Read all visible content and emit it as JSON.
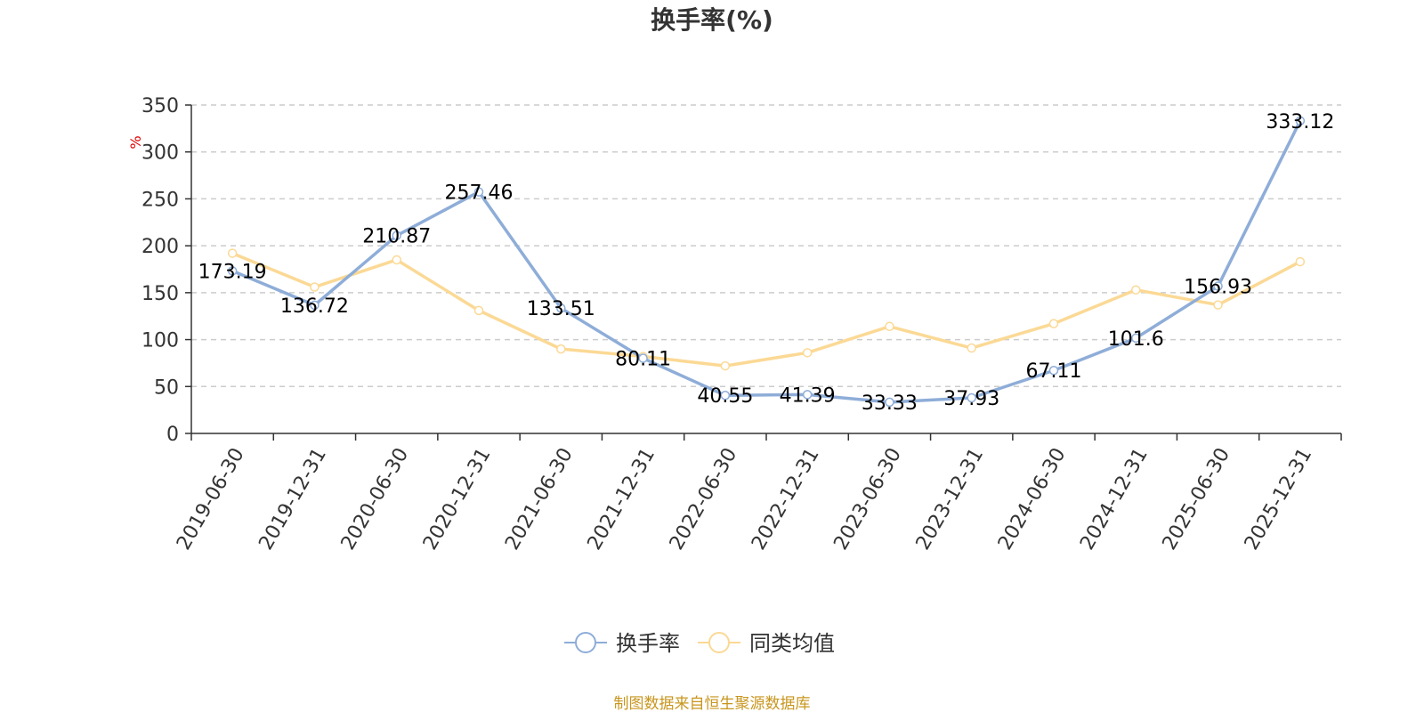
{
  "chart_data": {
    "type": "line",
    "title": "换手率(%)",
    "unit_label": "%",
    "source": "制图数据来自恒生聚源数据库",
    "categories": [
      "2019-06-30",
      "2019-12-31",
      "2020-06-30",
      "2020-12-31",
      "2021-06-30",
      "2021-12-31",
      "2022-06-30",
      "2022-12-31",
      "2023-06-30",
      "2023-12-31",
      "2024-06-30",
      "2024-12-31",
      "2025-06-30",
      "2025-12-31"
    ],
    "yticks": [
      "0",
      "50",
      "100",
      "150",
      "200",
      "250",
      "300",
      "350"
    ],
    "ylim": [
      0,
      350
    ],
    "grid": true,
    "legend_position": "bottom",
    "series": [
      {
        "name": "换手率",
        "color": "#8eadd8",
        "values": [
          173.19,
          136.72,
          210.87,
          257.46,
          133.51,
          80.11,
          40.55,
          41.39,
          33.33,
          37.93,
          67.11,
          101.6,
          156.93,
          333.12
        ],
        "labels": [
          "173.19",
          "136.72",
          "210.87",
          "257.46",
          "133.51",
          "80.11",
          "40.55",
          "41.39",
          "33.33",
          "37.93",
          "67.11",
          "101.6",
          "156.93",
          "333.12"
        ]
      },
      {
        "name": "同类均值",
        "color": "#fbd995",
        "values": [
          192,
          156,
          185,
          131,
          90,
          82,
          72,
          86,
          114,
          91,
          117,
          153,
          137,
          183
        ]
      }
    ]
  }
}
